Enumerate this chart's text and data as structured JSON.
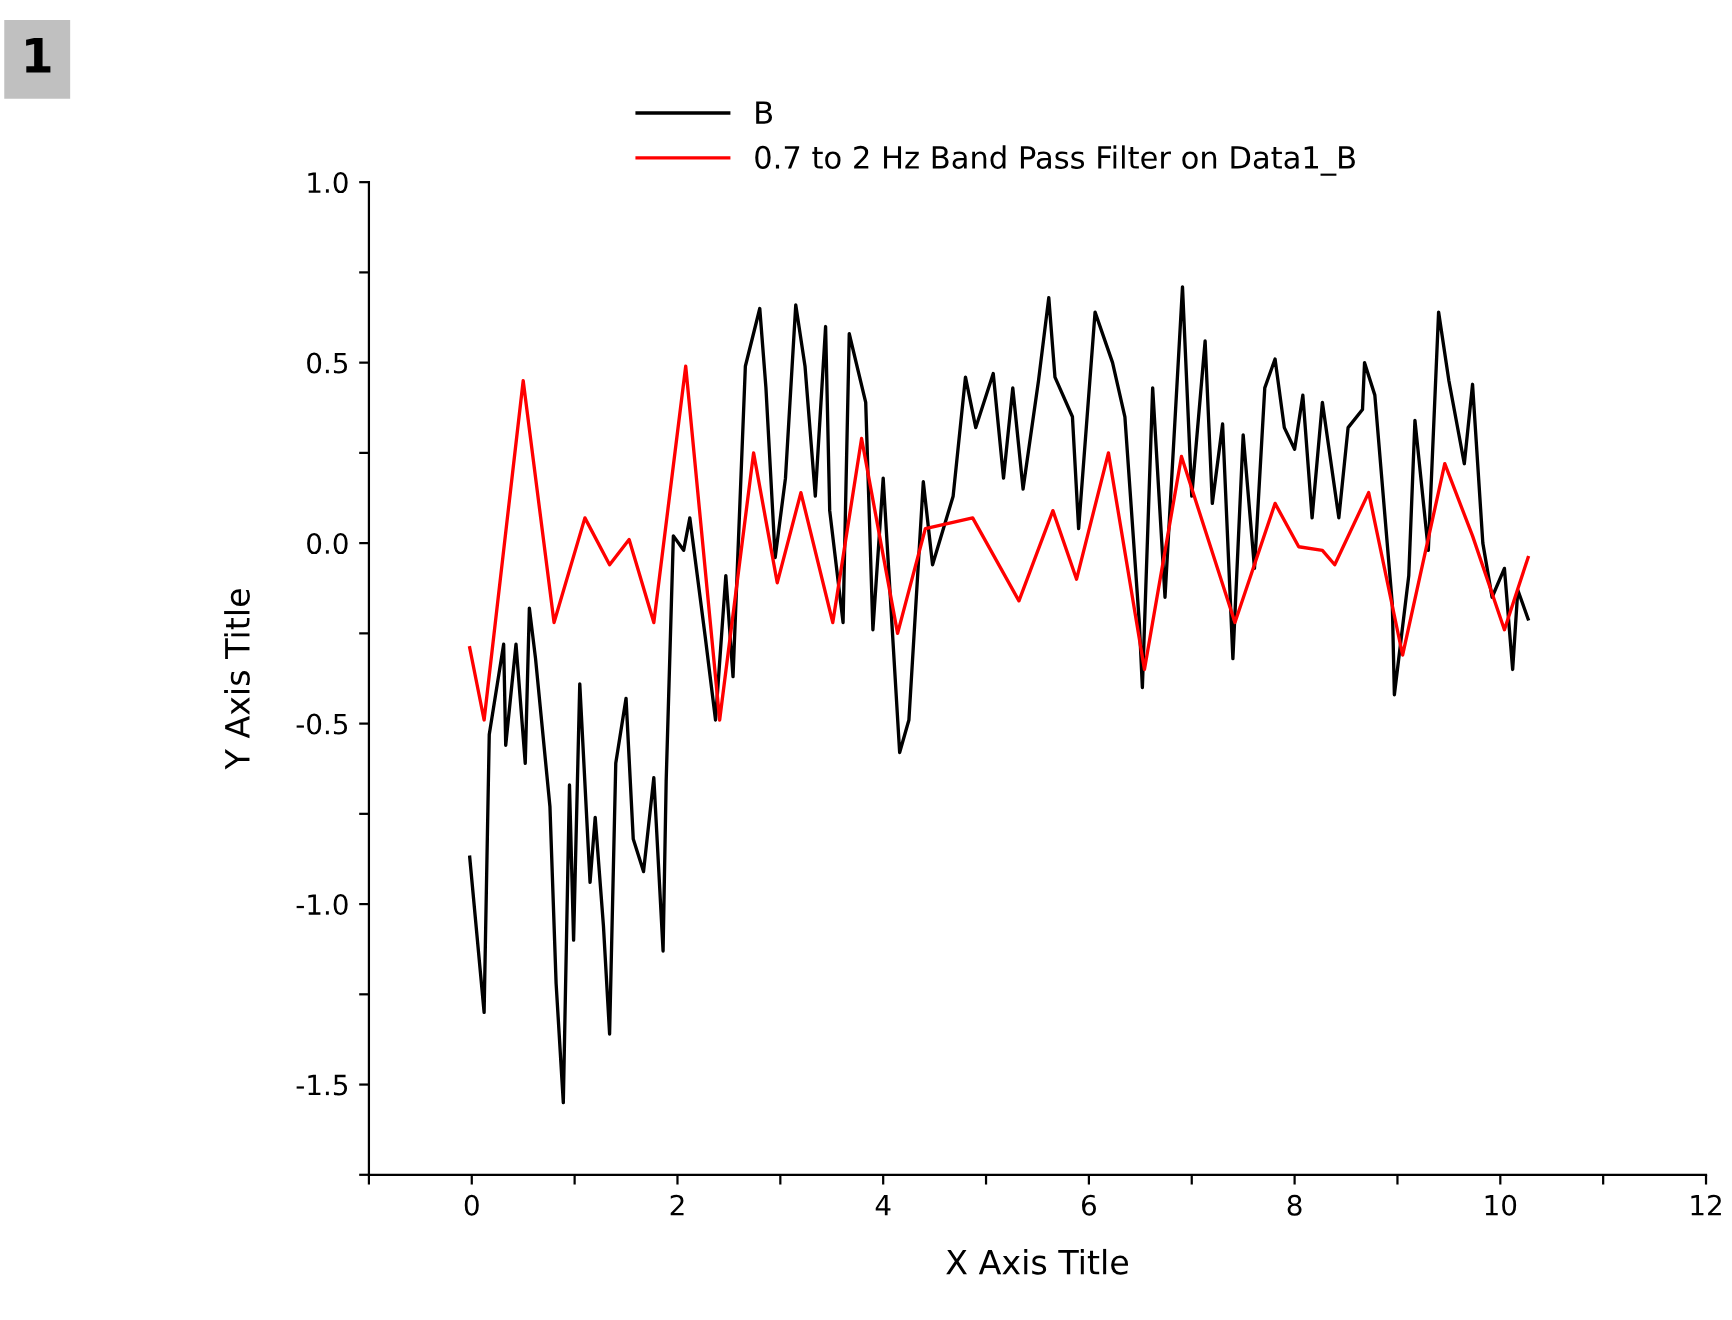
{
  "chart_data": {
    "type": "line",
    "xlabel": "X Axis Title",
    "ylabel": "Y Axis Title",
    "annotations": [
      "1"
    ],
    "xlim": [
      -1,
      12
    ],
    "ylim": [
      -1.75,
      1.0
    ],
    "xticks": [
      {
        "value": -1,
        "label": null
      },
      0,
      {
        "value": 1,
        "label": null
      },
      2,
      {
        "value": 3,
        "label": null
      },
      4,
      {
        "value": 5,
        "label": null
      },
      6,
      {
        "value": 7,
        "label": null
      },
      8,
      {
        "value": 9,
        "label": null
      },
      10,
      {
        "value": 11,
        "label": null
      },
      12
    ],
    "yticks": [
      {
        "value": -1.75,
        "label": null
      },
      {
        "value": -1.5,
        "label": "-1.5"
      },
      {
        "value": -1.25,
        "label": null
      },
      {
        "value": -1.0,
        "label": "-1.0"
      },
      {
        "value": -0.75,
        "label": null
      },
      {
        "value": -0.5,
        "label": "-0.5"
      },
      {
        "value": -0.25,
        "label": null
      },
      {
        "value": 0.0,
        "label": "0.0"
      },
      {
        "value": 0.25,
        "label": null
      },
      {
        "value": 0.5,
        "label": "0.5"
      },
      {
        "value": 0.75,
        "label": null
      },
      {
        "value": 1.0,
        "label": "1.0"
      }
    ],
    "legend": "top",
    "grid": false,
    "marker": "none",
    "line_style": "solid",
    "series": [
      {
        "name": "B",
        "color": "#000000",
        "x": [
          -0.02,
          0.12,
          0.17,
          0.31,
          0.33,
          0.43,
          0.52,
          0.56,
          0.62,
          0.76,
          0.82,
          0.89,
          0.95,
          0.99,
          1.05,
          1.15,
          1.2,
          1.28,
          1.34,
          1.4,
          1.5,
          1.57,
          1.67,
          1.77,
          1.86,
          1.89,
          1.96,
          2.06,
          2.12,
          2.17,
          2.27,
          2.37,
          2.47,
          2.54,
          2.66,
          2.8,
          2.86,
          2.95,
          3.05,
          3.15,
          3.24,
          3.34,
          3.44,
          3.48,
          3.61,
          3.67,
          3.83,
          3.9,
          4.0,
          4.16,
          4.25,
          4.39,
          4.48,
          4.68,
          4.8,
          4.9,
          5.07,
          5.17,
          5.26,
          5.36,
          5.51,
          5.61,
          5.67,
          5.84,
          5.9,
          6.06,
          6.23,
          6.35,
          6.49,
          6.52,
          6.62,
          6.74,
          6.91,
          7.0,
          7.13,
          7.2,
          7.3,
          7.4,
          7.5,
          7.61,
          7.71,
          7.81,
          7.9,
          8.0,
          8.08,
          8.17,
          8.27,
          8.43,
          8.52,
          8.66,
          8.68,
          8.78,
          8.95,
          8.97,
          9.11,
          9.17,
          9.3,
          9.4,
          9.5,
          9.65,
          9.73,
          9.83,
          9.92,
          10.04,
          10.12,
          10.17,
          10.27
        ],
        "values": [
          -0.87,
          -1.3,
          -0.53,
          -0.28,
          -0.56,
          -0.28,
          -0.61,
          -0.18,
          -0.32,
          -0.73,
          -1.22,
          -1.55,
          -0.67,
          -1.1,
          -0.39,
          -0.94,
          -0.76,
          -1.06,
          -1.36,
          -0.61,
          -0.43,
          -0.82,
          -0.91,
          -0.65,
          -1.13,
          -0.66,
          0.02,
          -0.02,
          0.07,
          -0.04,
          -0.26,
          -0.49,
          -0.09,
          -0.37,
          0.49,
          0.65,
          0.43,
          -0.04,
          0.18,
          0.66,
          0.49,
          0.13,
          0.6,
          0.09,
          -0.22,
          0.58,
          0.39,
          -0.24,
          0.18,
          -0.58,
          -0.49,
          0.17,
          -0.06,
          0.13,
          0.46,
          0.32,
          0.47,
          0.18,
          0.43,
          0.15,
          0.45,
          0.68,
          0.46,
          0.35,
          0.04,
          0.64,
          0.5,
          0.35,
          -0.22,
          -0.4,
          0.43,
          -0.15,
          0.71,
          0.13,
          0.56,
          0.11,
          0.33,
          -0.32,
          0.3,
          -0.07,
          0.43,
          0.51,
          0.32,
          0.26,
          0.41,
          0.07,
          0.39,
          0.07,
          0.32,
          0.37,
          0.5,
          0.41,
          -0.17,
          -0.42,
          -0.09,
          0.34,
          -0.02,
          0.64,
          0.45,
          0.22,
          0.44,
          0.0,
          -0.15,
          -0.07,
          -0.35,
          -0.13,
          -0.21
        ]
      },
      {
        "name": "0.7 to 2 Hz Band Pass Filter on Data1_B",
        "color": "#ff0000",
        "x": [
          -0.02,
          0.12,
          0.5,
          0.8,
          1.1,
          1.34,
          1.53,
          1.77,
          2.08,
          2.41,
          2.74,
          2.97,
          3.2,
          3.51,
          3.79,
          4.14,
          4.41,
          4.87,
          5.32,
          5.65,
          5.88,
          6.19,
          6.54,
          6.9,
          7.42,
          7.81,
          8.04,
          8.27,
          8.39,
          8.72,
          9.05,
          9.46,
          9.73,
          10.04,
          10.27
        ],
        "values": [
          -0.29,
          -0.49,
          0.45,
          -0.22,
          0.07,
          -0.06,
          0.01,
          -0.22,
          0.49,
          -0.49,
          0.25,
          -0.11,
          0.14,
          -0.22,
          0.29,
          -0.25,
          0.04,
          0.07,
          -0.16,
          0.09,
          -0.1,
          0.25,
          -0.35,
          0.24,
          -0.22,
          0.11,
          -0.01,
          -0.02,
          -0.06,
          0.14,
          -0.31,
          0.22,
          0.02,
          -0.24,
          -0.04
        ]
      }
    ]
  }
}
